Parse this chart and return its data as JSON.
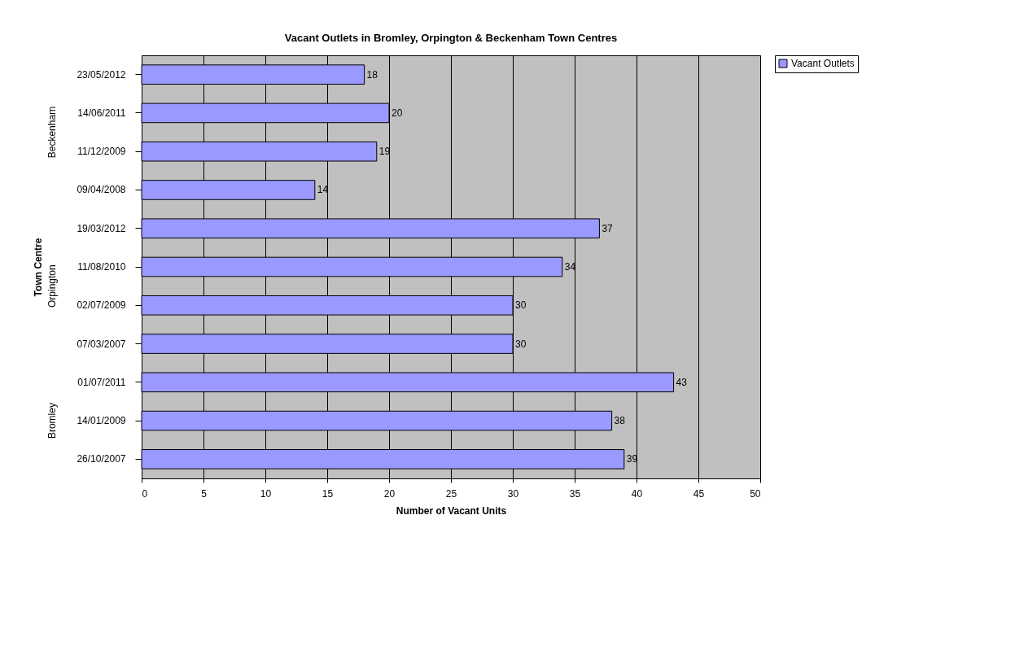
{
  "chart_data": {
    "type": "bar",
    "orientation": "horizontal",
    "title": "Vacant Outlets in Bromley, Orpington & Beckenham Town Centres",
    "xlabel": "Number of Vacant Units",
    "ylabel": "Town Centre",
    "categories": [
      "23/05/2012",
      "14/06/2011",
      "11/12/2009",
      "09/04/2008",
      "19/03/2012",
      "11/08/2010",
      "02/07/2009",
      "07/03/2007",
      "01/07/2011",
      "14/01/2009",
      "26/10/2007"
    ],
    "series": [
      {
        "name": "Vacant Outlets",
        "color": "#9999ff",
        "values": [
          18,
          20,
          19,
          14,
          37,
          34,
          30,
          30,
          43,
          38,
          39
        ]
      }
    ],
    "xlim": [
      0,
      50
    ],
    "xticks": [
      0,
      5,
      10,
      15,
      20,
      25,
      30,
      35,
      40,
      45,
      50
    ],
    "grid": "x",
    "legend": "right",
    "data_labels": true,
    "annotations": [
      "Beckenham",
      "Orpington",
      "Bromley"
    ]
  }
}
